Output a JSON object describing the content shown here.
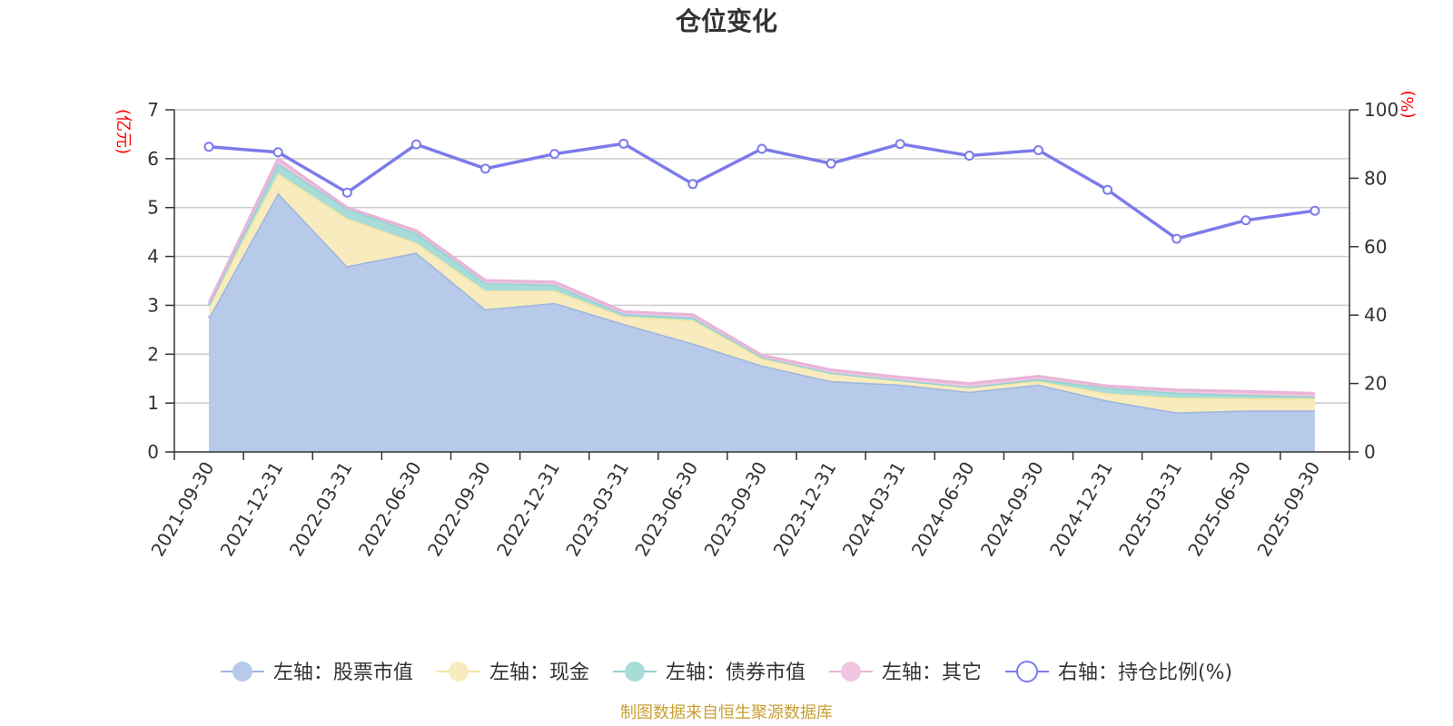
{
  "chart_data": {
    "type": "area",
    "title": "仓位变化",
    "left_axis_unit": "(亿元)",
    "right_axis_unit": "(%)",
    "source": "制图数据来自恒生聚源数据库",
    "categories": [
      "2021-09-30",
      "2021-12-31",
      "2022-03-31",
      "2022-06-30",
      "2022-09-30",
      "2022-12-31",
      "2023-03-31",
      "2023-06-30",
      "2023-09-30",
      "2023-12-31",
      "2024-03-31",
      "2024-06-30",
      "2024-09-30",
      "2024-12-31",
      "2025-03-31",
      "2025-06-30",
      "2025-09-30"
    ],
    "y_left_ticks": [
      "0",
      "1",
      "2",
      "3",
      "4",
      "5",
      "6",
      "7"
    ],
    "y_right_ticks": [
      "0",
      "20",
      "40",
      "60",
      "80",
      "100"
    ],
    "ylim_left": [
      0,
      7
    ],
    "ylim_right": [
      0,
      100
    ],
    "stacked_series": [
      {
        "name": "左轴：股票市值",
        "color": "#9db5e0",
        "fill": "#b7caea",
        "values": [
          2.75,
          5.3,
          3.8,
          4.08,
          2.92,
          3.05,
          2.62,
          2.22,
          1.77,
          1.45,
          1.38,
          1.23,
          1.38,
          1.05,
          0.81,
          0.85,
          0.85
        ]
      },
      {
        "name": "左轴：现金",
        "color": "#f5e5a0",
        "fill": "#f8ebbd",
        "values": [
          0.25,
          0.4,
          0.98,
          0.2,
          0.38,
          0.25,
          0.15,
          0.48,
          0.15,
          0.17,
          0.09,
          0.1,
          0.07,
          0.15,
          0.3,
          0.25,
          0.25
        ]
      },
      {
        "name": "左轴：债券市值",
        "color": "#8fd3d3",
        "fill": "#a8dcd9",
        "values": [
          0.0,
          0.2,
          0.2,
          0.2,
          0.16,
          0.12,
          0.05,
          0.05,
          0.02,
          0.0,
          0.0,
          0.0,
          0.04,
          0.11,
          0.1,
          0.07,
          0.03
        ]
      },
      {
        "name": "左轴：其它",
        "color": "#e8b4d8",
        "fill": "#f0c6e0",
        "values": [
          0.05,
          0.1,
          0.02,
          0.05,
          0.05,
          0.06,
          0.05,
          0.06,
          0.04,
          0.06,
          0.06,
          0.07,
          0.06,
          0.04,
          0.06,
          0.07,
          0.07
        ]
      }
    ],
    "line_series": {
      "name": "右轴：持仓比例(%)",
      "color": "#7b7bea",
      "values": [
        89.2,
        87.6,
        75.8,
        89.9,
        82.8,
        87.1,
        90.1,
        78.3,
        88.6,
        84.3,
        90.0,
        86.6,
        88.2,
        76.6,
        62.3,
        67.7,
        70.5
      ]
    }
  }
}
